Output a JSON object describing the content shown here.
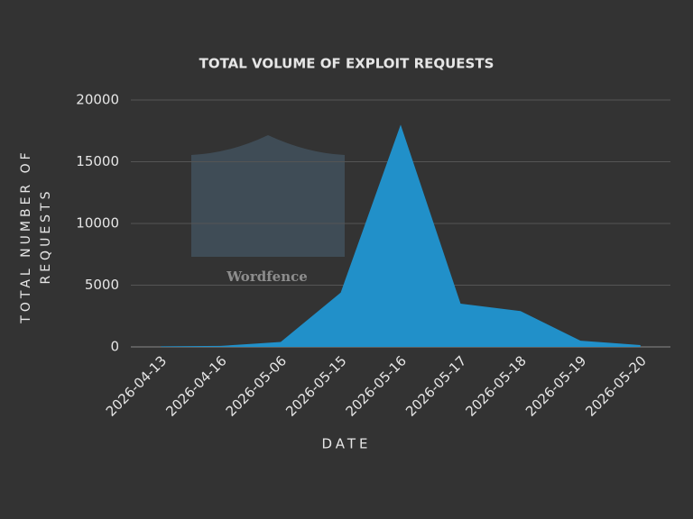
{
  "chart_data": {
    "type": "area",
    "title": "TOTAL VOLUME OF EXPLOIT REQUESTS",
    "x_label": "DATE",
    "y_label": "TOTAL NUMBER OF REQUESTS",
    "watermark": "Wordfence",
    "categories": [
      "2026-04-13",
      "2026-04-16",
      "2026-05-06",
      "2026-05-15",
      "2026-05-16",
      "2026-05-17",
      "2026-05-18",
      "2026-05-19",
      "2026-05-20"
    ],
    "values": [
      50,
      80,
      400,
      4400,
      18000,
      3500,
      2900,
      500,
      150
    ],
    "color": "#2190c9",
    "ylim": [
      0,
      20000
    ],
    "yticks": [
      0,
      5000,
      10000,
      15000,
      20000
    ],
    "grid": true
  }
}
